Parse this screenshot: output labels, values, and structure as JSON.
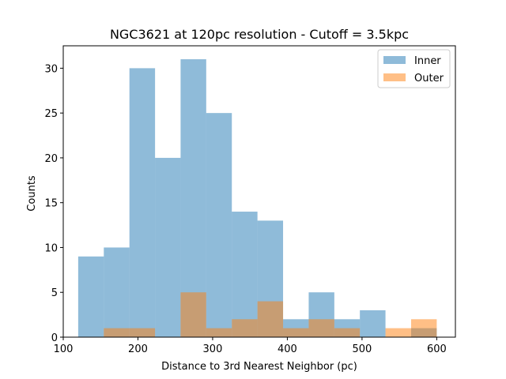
{
  "chart_data": {
    "type": "bar",
    "title": "NGC3621 at 120pc resolution - Cutoff = 3.5kpc",
    "xlabel": "Distance to 3rd Nearest Neighbor (pc)",
    "ylabel": "Counts",
    "xlim": [
      100,
      625
    ],
    "ylim": [
      0,
      32.5
    ],
    "xticks": [
      100,
      200,
      300,
      400,
      500,
      600
    ],
    "yticks": [
      0,
      5,
      10,
      15,
      20,
      25,
      30
    ],
    "bin_edges": [
      120,
      154.3,
      188.6,
      222.9,
      257.1,
      291.4,
      325.7,
      360,
      394.3,
      428.6,
      462.9,
      497.1,
      531.4,
      565.7,
      600
    ],
    "series": [
      {
        "name": "Inner",
        "color": "#1f77b4",
        "opacity": 0.5,
        "values": [
          9,
          10,
          30,
          20,
          31,
          25,
          14,
          13,
          2,
          5,
          2,
          3,
          0,
          1
        ]
      },
      {
        "name": "Outer",
        "color": "#ff7f0e",
        "opacity": 0.5,
        "values": [
          0,
          1,
          1,
          0,
          5,
          1,
          2,
          4,
          1,
          2,
          1,
          0,
          1,
          2
        ]
      }
    ],
    "legend_position": "top-right"
  }
}
